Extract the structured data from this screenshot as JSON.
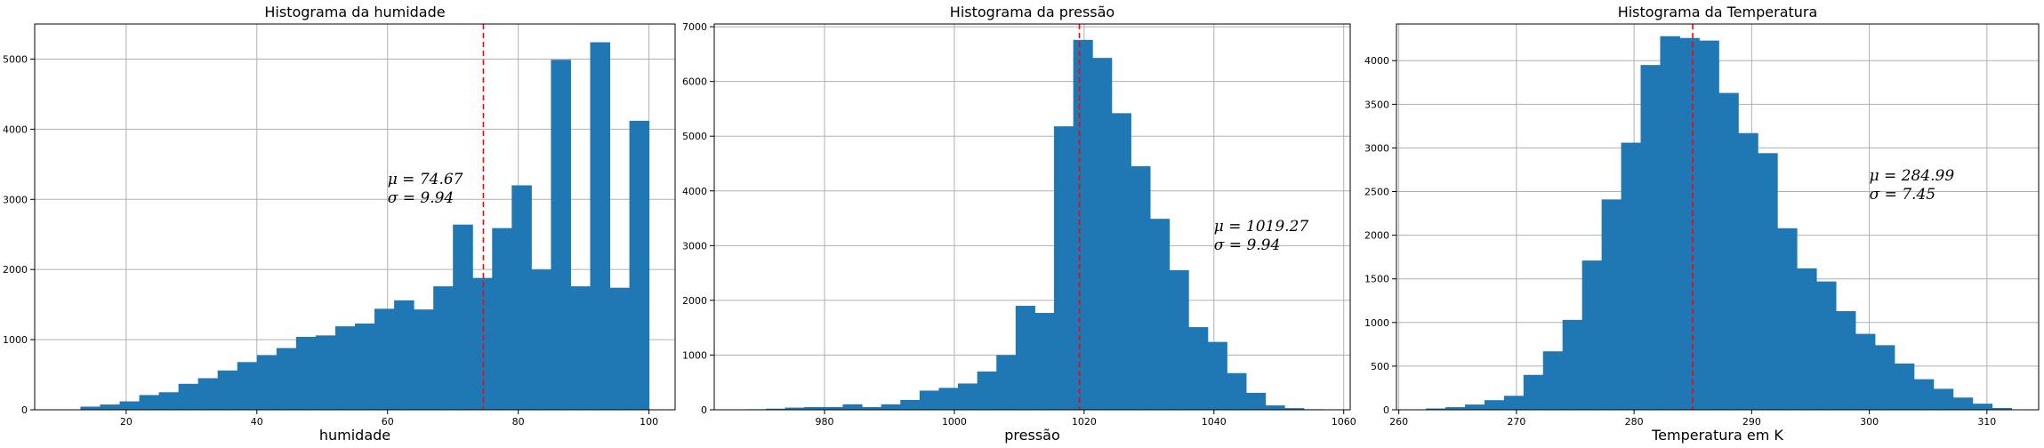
{
  "chart_data": [
    {
      "type": "bar",
      "title": "Histograma da humidade",
      "xlabel": "humidade",
      "ylabel": "",
      "xlim": [
        6,
        104
      ],
      "ylim": [
        0,
        5500
      ],
      "xticks": [
        20,
        40,
        60,
        80,
        100
      ],
      "yticks": [
        0,
        1000,
        2000,
        3000,
        4000,
        5000
      ],
      "grid": true,
      "bin_start": 10,
      "bin_width": 3,
      "values": [
        5,
        45,
        75,
        120,
        210,
        250,
        370,
        450,
        560,
        680,
        780,
        880,
        1040,
        1060,
        1190,
        1230,
        1440,
        1560,
        1430,
        1760,
        2640,
        1880,
        2590,
        3200,
        2000,
        4990,
        1760,
        5240,
        1740,
        4120
      ],
      "mean_line": 74.67,
      "annotation": {
        "x": 60,
        "line1": "μ = 74.67",
        "line2": "σ = 9.94"
      }
    },
    {
      "type": "bar",
      "title": "Histograma da pressão",
      "xlabel": "pressão",
      "ylabel": "",
      "xlim": [
        963,
        1061
      ],
      "ylim": [
        0,
        7050
      ],
      "xticks": [
        980,
        1000,
        1020,
        1040,
        1060
      ],
      "yticks": [
        0,
        1000,
        2000,
        3000,
        4000,
        5000,
        6000,
        7000
      ],
      "grid": true,
      "bin_start": 968,
      "bin_width": 2.96,
      "values": [
        10,
        20,
        40,
        50,
        50,
        100,
        50,
        100,
        180,
        350,
        400,
        480,
        700,
        1000,
        1900,
        1770,
        5180,
        6760,
        6430,
        5420,
        4450,
        3490,
        2550,
        1510,
        1240,
        670,
        310,
        80,
        30,
        10
      ],
      "mean_line": 1019.27,
      "annotation": {
        "x": 1040,
        "line1": "μ = 1019.27",
        "line2": "σ = 9.94"
      }
    },
    {
      "type": "bar",
      "title": "Histograma da Temperatura",
      "xlabel": "Temperatura em K",
      "ylabel": "",
      "xlim": [
        259.8,
        314.4
      ],
      "ylim": [
        0,
        4420
      ],
      "xticks": [
        260,
        270,
        280,
        290,
        300,
        310
      ],
      "yticks": [
        0,
        500,
        1000,
        1500,
        2000,
        2500,
        3000,
        3500,
        4000
      ],
      "grid": true,
      "bin_start": 262.3,
      "bin_width": 1.66,
      "values": [
        15,
        30,
        60,
        110,
        160,
        400,
        670,
        1030,
        1710,
        2410,
        3060,
        3950,
        4280,
        4260,
        4230,
        3630,
        3170,
        2940,
        2080,
        1620,
        1470,
        1130,
        870,
        740,
        530,
        350,
        240,
        140,
        70,
        20
      ],
      "mean_line": 284.99,
      "annotation": {
        "x": 300,
        "line1": "μ = 284.99",
        "line2": "σ = 7.45"
      }
    }
  ],
  "colors": {
    "bar": "#1f77b4",
    "mean_line": "#ff0000",
    "grid": "#b0b0b0"
  }
}
